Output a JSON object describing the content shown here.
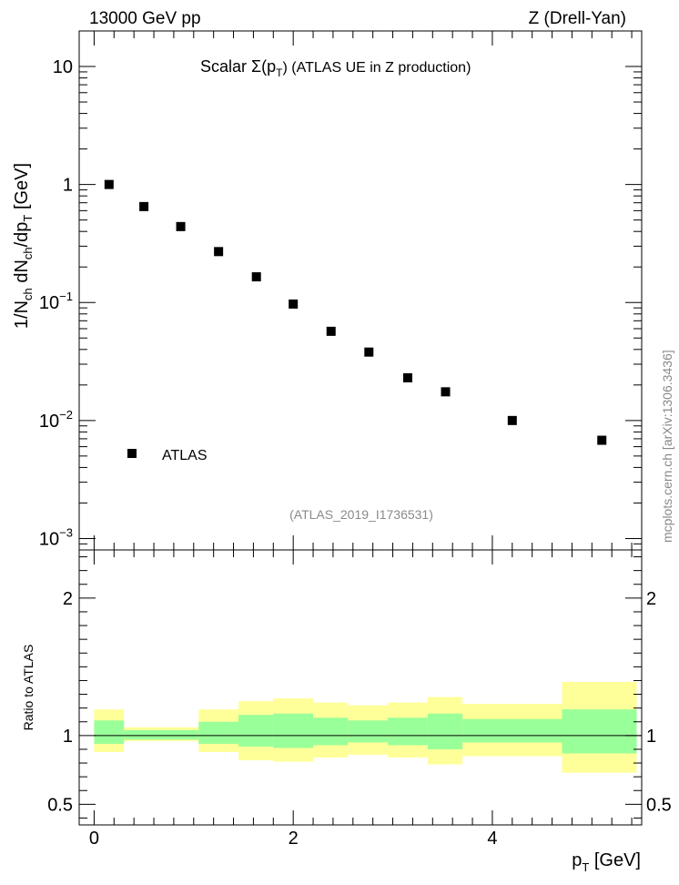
{
  "header": {
    "left": "13000 GeV pp",
    "right": "Z (Drell-Yan)"
  },
  "chart_data": [
    {
      "type": "scatter",
      "title": "Scalar Σ(pT) (ATLAS UE in Z production)",
      "title_prefix": "Scalar ",
      "title_sigma": "Σ(p",
      "title_sub": "T",
      "title_suffix": ") (ATLAS UE in Z production)",
      "ylabel": "1/Nch dNch/dpT [GeV]",
      "yscale": "log",
      "ylim": [
        0.0008,
        20
      ],
      "xlim": [
        -0.15,
        5.5
      ],
      "yticks": [
        {
          "value": 0.001,
          "base": "10",
          "exp": "−3"
        },
        {
          "value": 0.01,
          "base": "10",
          "exp": "−2"
        },
        {
          "value": 0.1,
          "base": "10",
          "exp": "−1"
        },
        {
          "value": 1,
          "base": "1",
          "exp": ""
        },
        {
          "value": 10,
          "base": "10",
          "exp": ""
        }
      ],
      "legend": {
        "label": "ATLAS",
        "placement": "bottom-left"
      },
      "reference": "(ATLAS_2019_I1736531)",
      "series": [
        {
          "name": "ATLAS",
          "marker": "square",
          "color": "#000000",
          "x": [
            0.15,
            0.5,
            0.87,
            1.25,
            1.63,
            2.0,
            2.38,
            2.76,
            3.15,
            3.53,
            4.2,
            5.1
          ],
          "y": [
            1.0,
            0.65,
            0.44,
            0.27,
            0.165,
            0.097,
            0.057,
            0.038,
            0.023,
            0.0175,
            0.01,
            0.0068
          ]
        }
      ]
    },
    {
      "type": "area",
      "ylabel": "Ratio to ATLAS",
      "xlabel": "pT [GeV]",
      "ylim": [
        0.35,
        2.35
      ],
      "xlim": [
        -0.15,
        5.5
      ],
      "yticks": [
        0.5,
        1,
        2
      ],
      "ytick_labels": [
        "0.5",
        "1",
        "2"
      ],
      "xticks": [
        0,
        2,
        4
      ],
      "xtick_labels": [
        "0",
        "2",
        "4"
      ],
      "reference_line": 1,
      "colors": {
        "inner": "#99ff99",
        "outer": "#ffff99"
      },
      "bins": [
        {
          "lo": 0.0,
          "hi": 0.3,
          "inner": [
            0.94,
            1.11
          ],
          "outer": [
            0.88,
            1.19
          ]
        },
        {
          "lo": 0.3,
          "hi": 0.7,
          "inner": [
            0.97,
            1.04
          ],
          "outer": [
            0.96,
            1.06
          ]
        },
        {
          "lo": 0.7,
          "hi": 1.05,
          "inner": [
            0.97,
            1.04
          ],
          "outer": [
            0.96,
            1.06
          ]
        },
        {
          "lo": 1.05,
          "hi": 1.45,
          "inner": [
            0.94,
            1.1
          ],
          "outer": [
            0.88,
            1.19
          ]
        },
        {
          "lo": 1.45,
          "hi": 1.8,
          "inner": [
            0.92,
            1.15
          ],
          "outer": [
            0.82,
            1.25
          ]
        },
        {
          "lo": 1.8,
          "hi": 2.2,
          "inner": [
            0.91,
            1.16
          ],
          "outer": [
            0.81,
            1.27
          ]
        },
        {
          "lo": 2.2,
          "hi": 2.55,
          "inner": [
            0.93,
            1.13
          ],
          "outer": [
            0.84,
            1.24
          ]
        },
        {
          "lo": 2.55,
          "hi": 2.95,
          "inner": [
            0.95,
            1.11
          ],
          "outer": [
            0.86,
            1.22
          ]
        },
        {
          "lo": 2.95,
          "hi": 3.35,
          "inner": [
            0.93,
            1.13
          ],
          "outer": [
            0.84,
            1.24
          ]
        },
        {
          "lo": 3.35,
          "hi": 3.7,
          "inner": [
            0.9,
            1.16
          ],
          "outer": [
            0.79,
            1.28
          ]
        },
        {
          "lo": 3.7,
          "hi": 4.7,
          "inner": [
            0.95,
            1.12
          ],
          "outer": [
            0.85,
            1.23
          ]
        },
        {
          "lo": 4.7,
          "hi": 5.45,
          "inner": [
            0.87,
            1.19
          ],
          "outer": [
            0.73,
            1.39
          ]
        }
      ]
    }
  ],
  "credit": "mcplots.cern.ch [arXiv:1306.3436]"
}
